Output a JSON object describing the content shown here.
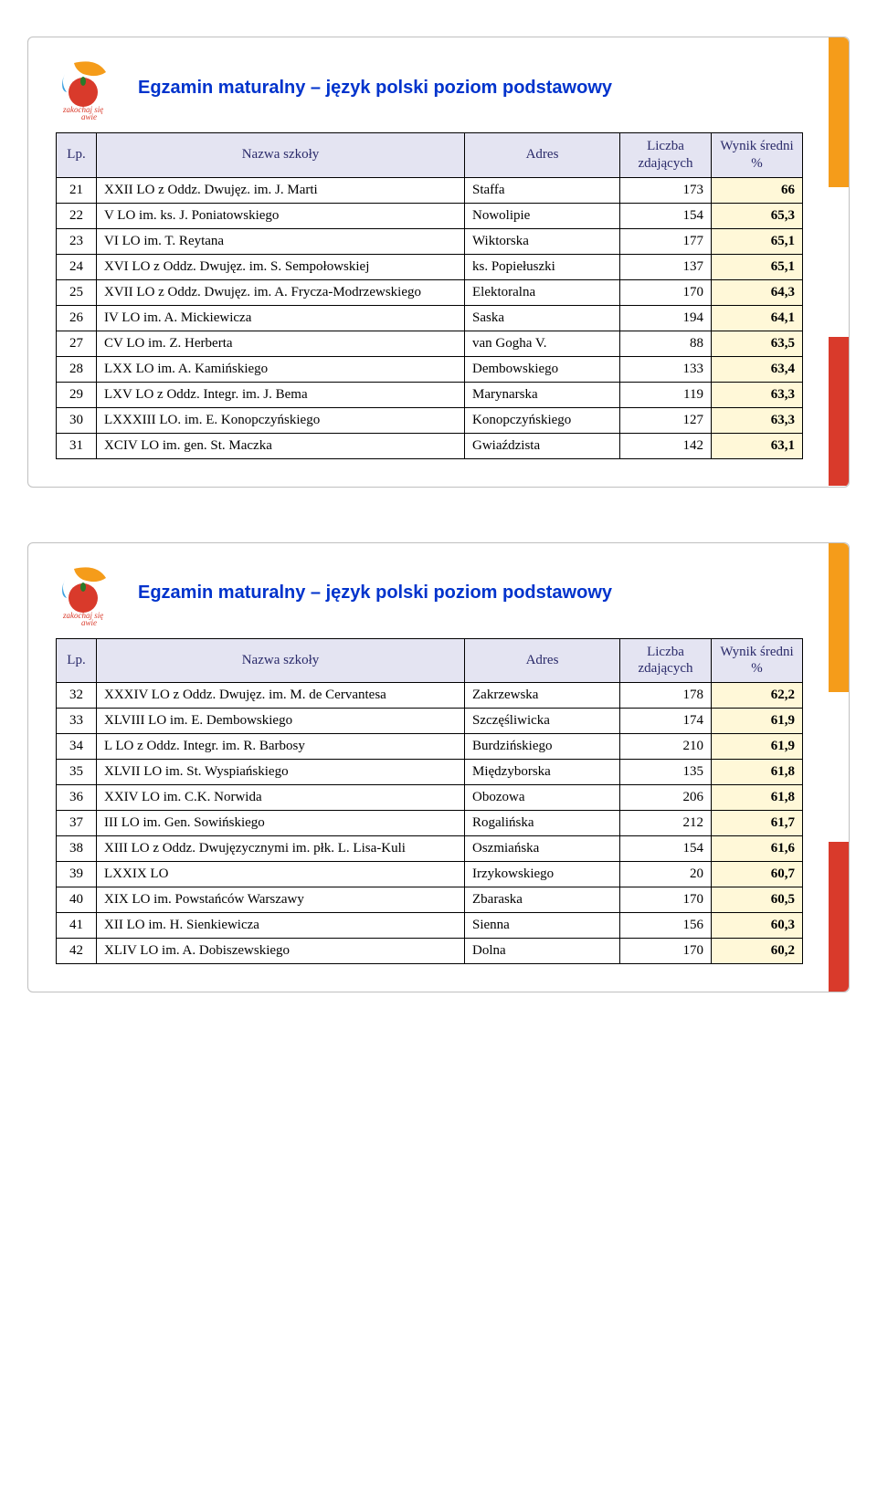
{
  "title": "Egzamin maturalny – język polski poziom  podstawowy",
  "columns": [
    "Lp.",
    "Nazwa szkoły",
    "Adres",
    "Liczba zdających",
    "Wynik średni %"
  ],
  "colors": {
    "title": "#0033cc",
    "header_bg": "#e4e4f2",
    "header_text": "#2a2a6a",
    "score_bg": "#fff8d8",
    "sidebar_orange": "#f59c1a",
    "sidebar_red": "#d93a2b",
    "border": "#000000"
  },
  "card1": {
    "rows": [
      {
        "lp": "21",
        "name": "XXII LO z Oddz. Dwujęz. im. J.  Marti",
        "addr": "Staffa",
        "count": "173",
        "score": "66"
      },
      {
        "lp": "22",
        "name": "V LO im. ks. J.  Poniatowskiego",
        "addr": "Nowolipie",
        "count": "154",
        "score": "65,3"
      },
      {
        "lp": "23",
        "name": "VI LO im. T.  Reytana",
        "addr": "Wiktorska",
        "count": "177",
        "score": "65,1"
      },
      {
        "lp": "24",
        "name": "XVI LO z Oddz. Dwujęz. im. S. Sempołowskiej",
        "addr": "ks. Popiełuszki",
        "count": "137",
        "score": "65,1"
      },
      {
        "lp": "25",
        "name": "XVII LO z Oddz. Dwujęz. im. A. Frycza-Modrzewskiego",
        "addr": "Elektoralna",
        "count": "170",
        "score": "64,3"
      },
      {
        "lp": "26",
        "name": "IV LO im. A. Mickiewicza",
        "addr": "Saska",
        "count": "194",
        "score": "64,1"
      },
      {
        "lp": "27",
        "name": "CV LO im. Z. Herberta",
        "addr": "van Gogha V.",
        "count": "88",
        "score": "63,5"
      },
      {
        "lp": "28",
        "name": "LXX LO  im. A. Kamińskiego",
        "addr": "Dembowskiego",
        "count": "133",
        "score": "63,4"
      },
      {
        "lp": "29",
        "name": "LXV LO  z Oddz. Integr. im. J. Bema",
        "addr": "Marynarska",
        "count": "119",
        "score": "63,3"
      },
      {
        "lp": "30",
        "name": "LXXXIII LO. im. E. Konopczyńskiego",
        "addr": "Konopczyńskiego",
        "count": "127",
        "score": "63,3"
      },
      {
        "lp": "31",
        "name": "XCIV LO im. gen. St. Maczka",
        "addr": "Gwiaździsta",
        "count": "142",
        "score": "63,1"
      }
    ]
  },
  "card2": {
    "rows": [
      {
        "lp": "32",
        "name": "XXXIV LO z Oddz. Dwujęz. im. M. de Cervantesa",
        "addr": "Zakrzewska",
        "count": "178",
        "score": "62,2"
      },
      {
        "lp": "33",
        "name": "XLVIII LO im. E. Dembowskiego",
        "addr": "Szczęśliwicka",
        "count": "174",
        "score": "61,9"
      },
      {
        "lp": "34",
        "name": "L LO z Oddz. Integr. im. R. Barbosy",
        "addr": "Burdzińskiego",
        "count": "210",
        "score": "61,9"
      },
      {
        "lp": "35",
        "name": "XLVII LO im. St. Wyspiańskiego",
        "addr": "Międzyborska",
        "count": "135",
        "score": "61,8"
      },
      {
        "lp": "36",
        "name": "XXIV LO im. C.K. Norwida",
        "addr": "Obozowa",
        "count": "206",
        "score": "61,8"
      },
      {
        "lp": "37",
        "name": "III LO im. Gen. Sowińskiego",
        "addr": "Rogalińska",
        "count": "212",
        "score": "61,7"
      },
      {
        "lp": "38",
        "name": "XIII LO z Oddz. Dwujęzycznymi im. płk. L. Lisa-Kuli",
        "addr": "Oszmiańska",
        "count": "154",
        "score": "61,6"
      },
      {
        "lp": "39",
        "name": "LXXIX LO",
        "addr": "Irzykowskiego",
        "count": "20",
        "score": "60,7"
      },
      {
        "lp": "40",
        "name": "XIX LO im. Powstańców Warszawy",
        "addr": "Zbaraska",
        "count": "170",
        "score": "60,5"
      },
      {
        "lp": "41",
        "name": "XII LO im. H. Sienkiewicza",
        "addr": "Sienna",
        "count": "156",
        "score": "60,3"
      },
      {
        "lp": "42",
        "name": "XLIV LO im. A. Dobiszewskiego",
        "addr": "Dolna",
        "count": "170",
        "score": "60,2"
      }
    ]
  }
}
